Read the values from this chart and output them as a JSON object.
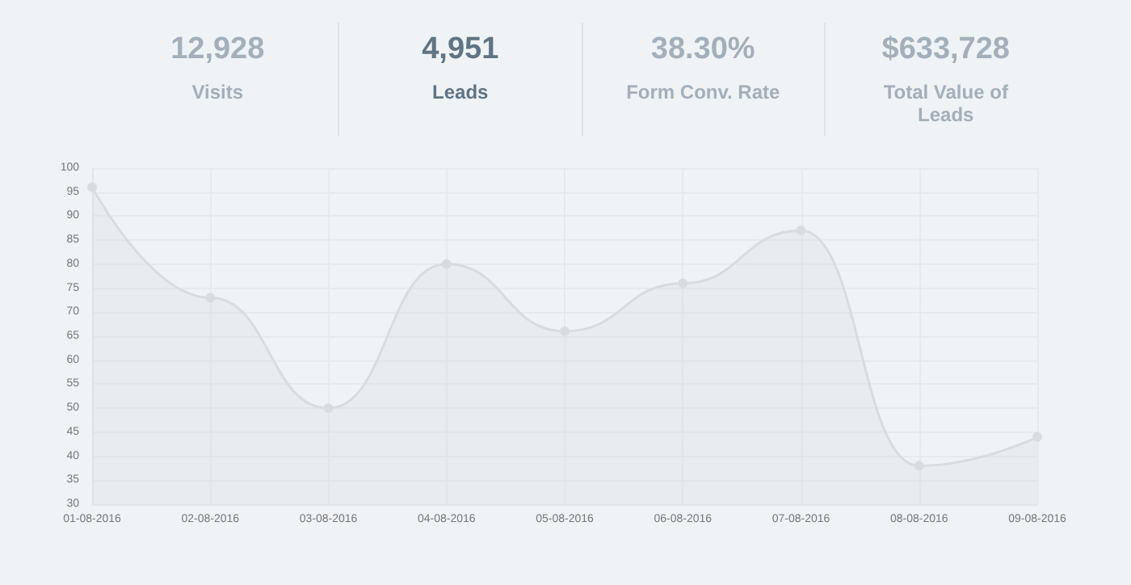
{
  "chart_data": [
    {
      "type": "other",
      "annotations": [
        "12,928",
        "Visits",
        "4,951",
        "Leads",
        "38.30%",
        "Form Conv. Rate",
        "$633,728",
        "Total Value of Leads"
      ]
    },
    {
      "type": "area",
      "categories": [
        "01-08-2016",
        "02-08-2016",
        "03-08-2016",
        "04-08-2016",
        "05-08-2016",
        "06-08-2016",
        "07-08-2016",
        "08-08-2016",
        "09-08-2016"
      ],
      "series": [
        {
          "color": "#d8dce1",
          "values": [
            96,
            73,
            50,
            80,
            66,
            76,
            87,
            38,
            44
          ]
        }
      ],
      "ylim": [
        30,
        100
      ],
      "yticks": [
        30,
        35,
        40,
        45,
        50,
        55,
        60,
        65,
        70,
        75,
        80,
        85,
        90,
        95,
        100
      ],
      "grid": true,
      "marker": "circle",
      "line_style": "solid"
    }
  ]
}
